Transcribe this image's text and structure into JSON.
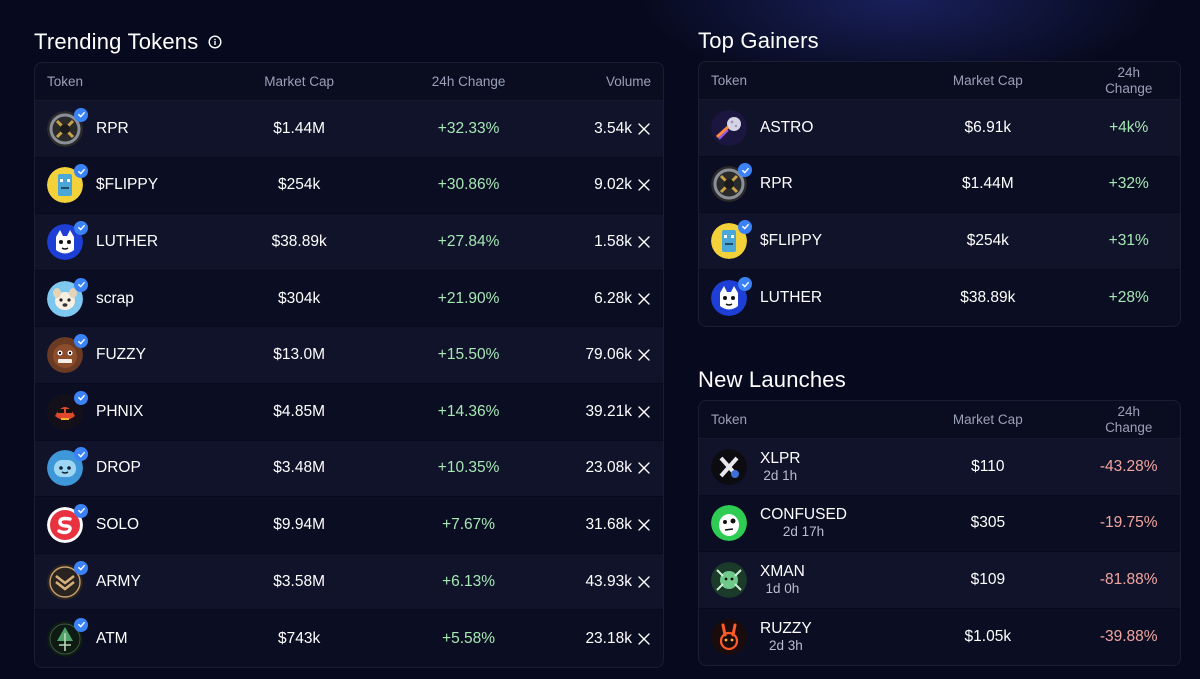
{
  "trending": {
    "title": "Trending Tokens",
    "columns": [
      "Token",
      "Market Cap",
      "24h Change",
      "Volume"
    ],
    "rows": [
      {
        "symbol": "RPR",
        "market_cap": "$1.44M",
        "change": "+32.33%",
        "volume": "3.54k",
        "avatar": "rpr-logo"
      },
      {
        "symbol": "$FLIPPY",
        "market_cap": "$254k",
        "change": "+30.86%",
        "volume": "9.02k",
        "avatar": "flippy-logo"
      },
      {
        "symbol": "LUTHER",
        "market_cap": "$38.89k",
        "change": "+27.84%",
        "volume": "1.58k",
        "avatar": "luther-logo"
      },
      {
        "symbol": "scrap",
        "market_cap": "$304k",
        "change": "+21.90%",
        "volume": "6.28k",
        "avatar": "scrap-logo"
      },
      {
        "symbol": "FUZZY",
        "market_cap": "$13.0M",
        "change": "+15.50%",
        "volume": "79.06k",
        "avatar": "fuzzy-logo"
      },
      {
        "symbol": "PHNIX",
        "market_cap": "$4.85M",
        "change": "+14.36%",
        "volume": "39.21k",
        "avatar": "phnix-logo"
      },
      {
        "symbol": "DROP",
        "market_cap": "$3.48M",
        "change": "+10.35%",
        "volume": "23.08k",
        "avatar": "drop-logo"
      },
      {
        "symbol": "SOLO",
        "market_cap": "$9.94M",
        "change": "+7.67%",
        "volume": "31.68k",
        "avatar": "solo-logo"
      },
      {
        "symbol": "ARMY",
        "market_cap": "$3.58M",
        "change": "+6.13%",
        "volume": "43.93k",
        "avatar": "army-logo"
      },
      {
        "symbol": "ATM",
        "market_cap": "$743k",
        "change": "+5.58%",
        "volume": "23.18k",
        "avatar": "atm-logo"
      }
    ]
  },
  "gainers": {
    "title": "Top Gainers",
    "columns": [
      "Token",
      "Market Cap",
      "24h",
      "Change"
    ],
    "rows": [
      {
        "symbol": "ASTRO",
        "market_cap": "$6.91k",
        "change": "+4k%",
        "avatar": "astro-logo"
      },
      {
        "symbol": "RPR",
        "market_cap": "$1.44M",
        "change": "+32%",
        "avatar": "rpr-logo"
      },
      {
        "symbol": "$FLIPPY",
        "market_cap": "$254k",
        "change": "+31%",
        "avatar": "flippy-logo"
      },
      {
        "symbol": "LUTHER",
        "market_cap": "$38.89k",
        "change": "+28%",
        "avatar": "luther-logo"
      }
    ]
  },
  "launches": {
    "title": "New Launches",
    "columns": [
      "Token",
      "Market Cap",
      "24h",
      "Change"
    ],
    "rows": [
      {
        "symbol": "XLPR",
        "age": "2d 1h",
        "market_cap": "$110",
        "change": "-43.28%",
        "avatar": "xlpr-logo"
      },
      {
        "symbol": "CONFUSED",
        "age": "2d 17h",
        "market_cap": "$305",
        "change": "-19.75%",
        "avatar": "confused-logo"
      },
      {
        "symbol": "XMAN",
        "age": "1d 0h",
        "market_cap": "$109",
        "change": "-81.88%",
        "avatar": "xman-logo"
      },
      {
        "symbol": "RUZZY",
        "age": "2d 3h",
        "market_cap": "$1.05k",
        "change": "-39.88%",
        "avatar": "ruzzy-logo"
      }
    ]
  },
  "colors": {
    "positive": "#a6e8b4",
    "negative": "#f3a6a0",
    "verified": "#3b82f6",
    "background": "#070a1e"
  },
  "icons": {
    "info": "info-icon",
    "verified": "check-badge-icon",
    "volume_unit": "x-logo-icon"
  }
}
